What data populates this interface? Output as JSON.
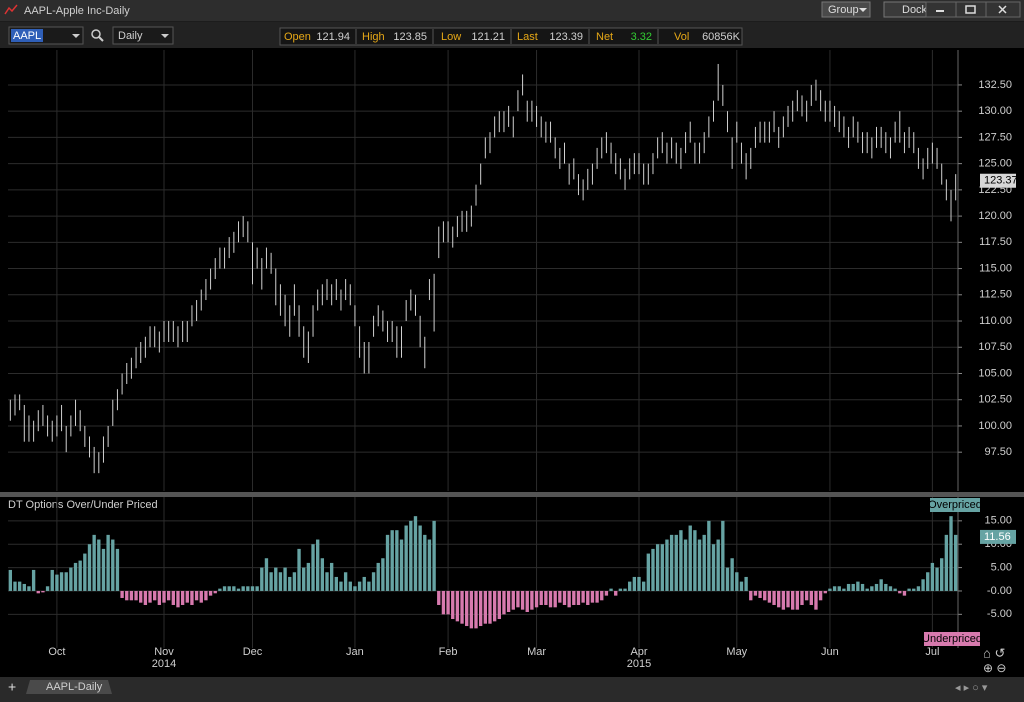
{
  "window": {
    "title": "AAPL-Apple Inc-Daily",
    "buttons": [
      "Group",
      "Dock"
    ]
  },
  "toolbar": {
    "symbol": "AAPL",
    "period": "Daily",
    "quotes": [
      {
        "label": "Open",
        "value": 121.94
      },
      {
        "label": "High",
        "value": 123.85
      },
      {
        "label": "Low",
        "value": 121.21
      },
      {
        "label": "Last",
        "value": 123.39
      },
      {
        "label": "Net",
        "value": 3.32
      },
      {
        "label": "Vol",
        "value": "60856K"
      }
    ]
  },
  "tab": "AAPL-Daily",
  "chart_data": [
    {
      "type": "range-bar",
      "color": "#d0d0d0",
      "grid": true,
      "last_value": 123.37,
      "ylim": [
        93.8,
        135.83
      ],
      "yticks": [
        {
          "value": 97.5,
          "label": "97.50"
        },
        {
          "value": 100,
          "label": "100.00"
        },
        {
          "value": 102.5,
          "label": "102.50"
        },
        {
          "value": 105,
          "label": "105.00"
        },
        {
          "value": 107.5,
          "label": "107.50"
        },
        {
          "value": 110,
          "label": "110.00"
        },
        {
          "value": 112.5,
          "label": "112.50"
        },
        {
          "value": 115,
          "label": "115.00"
        },
        {
          "value": 117.5,
          "label": "117.50"
        },
        {
          "value": 120,
          "label": "120.00"
        },
        {
          "value": 122.5,
          "label": "122.50"
        },
        {
          "value": 125,
          "label": "125.00"
        },
        {
          "value": 127.5,
          "label": "127.50"
        },
        {
          "value": 130,
          "label": "130.00"
        },
        {
          "value": 132.5,
          "label": "132.50"
        }
      ],
      "high": [
        102.5,
        103,
        103,
        102,
        101,
        100.5,
        101.5,
        102,
        101,
        100.5,
        101,
        102,
        100,
        101,
        102.5,
        101.5,
        100,
        99,
        98,
        97.5,
        99,
        100,
        102.5,
        103.5,
        105,
        106,
        106.5,
        107.5,
        108,
        108.5,
        109.5,
        109.5,
        109,
        110,
        110,
        110,
        109.5,
        110,
        110,
        111.5,
        112,
        113,
        114,
        115,
        116,
        117,
        117,
        118,
        118.5,
        119.5,
        120,
        119.5,
        117.5,
        117,
        116,
        117,
        116.5,
        115,
        113.5,
        112.5,
        111.5,
        113.5,
        111.5,
        109.5,
        109,
        111.5,
        113,
        113.5,
        114,
        113.5,
        114,
        113,
        114,
        113.5,
        111.5,
        109.5,
        108,
        108,
        110.5,
        111.5,
        111,
        110,
        110,
        109.5,
        109.5,
        112,
        113,
        112.5,
        110.5,
        108.5,
        114,
        114.5,
        119,
        119.5,
        119.5,
        119,
        120,
        120.5,
        120.5,
        121,
        123,
        125,
        127.5,
        128,
        129.5,
        130,
        130,
        130.5,
        129.5,
        132,
        133.5,
        131,
        131,
        130.5,
        129.5,
        129,
        129,
        127.5,
        126.5,
        127,
        125,
        125.5,
        124,
        123.5,
        124.5,
        125,
        126.5,
        127.5,
        128,
        127,
        126,
        125.5,
        124.5,
        125.5,
        126,
        126,
        125,
        125,
        126,
        127.5,
        128,
        127,
        127.5,
        127,
        126.5,
        128,
        129,
        127,
        127,
        128,
        129.5,
        131,
        134.5,
        132.5,
        130,
        127.5,
        129,
        127,
        126,
        126.5,
        128.5,
        129,
        129,
        129,
        130,
        128.5,
        129.5,
        130.5,
        131,
        132,
        131.5,
        131,
        132.5,
        133,
        132,
        131,
        131,
        130.5,
        130,
        129.5,
        128.5,
        129.5,
        129,
        128,
        128,
        127.5,
        128.5,
        128.5,
        128,
        127.5,
        129,
        130,
        128,
        128.5,
        128,
        126.5,
        125.5,
        126.5,
        127,
        126.5,
        125,
        123.5,
        122.5,
        124
      ],
      "low": [
        100.5,
        101,
        101.5,
        98.5,
        98.5,
        98.5,
        99.5,
        100,
        99,
        98.5,
        99,
        99.5,
        97.5,
        99,
        100,
        99.5,
        98,
        97,
        95.5,
        95.5,
        96.5,
        98,
        100,
        101.5,
        103,
        104,
        104.5,
        105.5,
        106,
        106.5,
        107.5,
        107.5,
        107,
        108,
        108,
        108,
        107.5,
        108,
        108,
        109.5,
        110,
        111,
        112,
        113,
        114,
        115,
        115,
        116,
        116.5,
        117.5,
        118,
        117.5,
        113.5,
        115,
        113,
        115,
        114.5,
        111.5,
        110.5,
        109.5,
        108.5,
        110.5,
        108.5,
        106.5,
        106,
        108.5,
        111,
        111.5,
        112,
        111.5,
        112,
        111,
        112,
        111.5,
        109.5,
        106.5,
        105,
        105,
        108.5,
        109.5,
        109,
        108,
        108,
        106.5,
        106.5,
        110,
        111,
        110.5,
        107.5,
        105.5,
        112,
        109,
        116,
        117.5,
        117.5,
        117,
        118,
        118.5,
        118.5,
        119,
        121,
        123,
        125.5,
        126,
        127.5,
        128,
        128,
        128.5,
        127.5,
        130,
        131.5,
        129,
        129,
        128.5,
        127.5,
        127,
        127,
        125.5,
        124.5,
        125,
        123,
        123.5,
        122,
        121.5,
        122.5,
        123,
        124.5,
        125.5,
        126,
        125,
        124,
        123.5,
        122.5,
        123.5,
        124,
        124,
        123,
        123,
        124,
        125.5,
        126,
        125,
        125.5,
        125,
        124.5,
        126,
        127,
        125,
        125,
        126,
        127.5,
        129,
        131,
        130.5,
        128,
        124.5,
        127,
        125,
        123.5,
        124.5,
        126.5,
        127,
        127,
        127,
        128,
        126.5,
        127.5,
        128.5,
        129,
        130,
        129.5,
        129,
        130.5,
        131,
        130,
        129,
        129,
        128.5,
        128,
        127.5,
        126.5,
        127.5,
        127,
        126,
        126,
        125.5,
        126.5,
        126.5,
        126,
        125.5,
        127,
        127,
        126,
        126.5,
        126,
        124.5,
        123.5,
        124.5,
        125,
        124.5,
        123,
        121.5,
        119.5,
        121.5
      ]
    },
    {
      "type": "bar",
      "title": "DT Options Over/Under Priced",
      "color": "#66a3a3",
      "negative_color": "#d77aae",
      "grid": true,
      "last_value": 11.56,
      "annotations": [
        "Overpriced",
        "Underpriced"
      ],
      "years": [
        "2014",
        "2015"
      ],
      "ylim": [
        -12.2,
        20.1
      ],
      "yticks": [
        {
          "value": 15,
          "label": "15.00"
        },
        {
          "value": 10,
          "label": "10.00"
        },
        {
          "value": 5,
          "label": "5.00"
        },
        {
          "value": 0,
          "label": "-0.00"
        },
        {
          "value": -5,
          "label": "-5.00"
        }
      ],
      "categories": [
        null,
        null,
        null,
        null,
        null,
        null,
        null,
        null,
        null,
        null,
        "Oct",
        null,
        null,
        null,
        null,
        null,
        null,
        null,
        null,
        null,
        null,
        null,
        null,
        null,
        null,
        null,
        null,
        null,
        null,
        null,
        null,
        null,
        null,
        "Nov",
        null,
        null,
        null,
        null,
        null,
        null,
        null,
        null,
        null,
        null,
        null,
        null,
        null,
        null,
        null,
        null,
        null,
        null,
        "Dec",
        null,
        null,
        null,
        null,
        null,
        null,
        null,
        null,
        null,
        null,
        null,
        null,
        null,
        null,
        null,
        null,
        null,
        null,
        null,
        null,
        null,
        "Jan",
        null,
        null,
        null,
        null,
        null,
        null,
        null,
        null,
        null,
        null,
        null,
        null,
        null,
        null,
        null,
        null,
        null,
        null,
        null,
        "Feb",
        null,
        null,
        null,
        null,
        null,
        null,
        null,
        null,
        null,
        null,
        null,
        null,
        null,
        null,
        null,
        null,
        null,
        null,
        "Mar",
        null,
        null,
        null,
        null,
        null,
        null,
        null,
        null,
        null,
        null,
        null,
        null,
        null,
        null,
        null,
        null,
        null,
        null,
        null,
        null,
        null,
        "Apr",
        null,
        null,
        null,
        null,
        null,
        null,
        null,
        null,
        null,
        null,
        null,
        null,
        null,
        null,
        null,
        null,
        null,
        null,
        null,
        null,
        "May",
        null,
        null,
        null,
        null,
        null,
        null,
        null,
        null,
        null,
        null,
        null,
        null,
        null,
        null,
        null,
        null,
        null,
        null,
        null,
        "Jun",
        null,
        null,
        null,
        null,
        null,
        null,
        null,
        null,
        null,
        null,
        null,
        null,
        null,
        null,
        null,
        null,
        null,
        null,
        null,
        null,
        null,
        "Jul",
        null,
        null,
        null,
        null,
        null
      ],
      "values": [
        4.5,
        2,
        2,
        1.5,
        1,
        4.5,
        -0.5,
        -0.3,
        1,
        4.5,
        3.5,
        4,
        4,
        5,
        6,
        6.5,
        8,
        10,
        12,
        11,
        9,
        12,
        11,
        9,
        -1.5,
        -2,
        -2,
        -2,
        -2.5,
        -3,
        -2.5,
        -2,
        -3,
        -2.5,
        -2,
        -3,
        -3.5,
        -3,
        -2.5,
        -3,
        -2,
        -2.5,
        -2,
        -1,
        -0.5,
        0.5,
        1,
        1,
        1,
        0.5,
        1,
        1,
        1,
        1,
        5,
        7,
        4,
        5,
        4,
        5,
        3,
        4,
        9,
        5,
        6,
        10,
        11,
        7,
        4,
        6,
        3,
        2,
        4,
        2,
        1,
        2,
        3,
        2,
        4,
        6,
        7,
        12,
        13,
        13,
        11,
        14,
        15,
        16,
        14,
        12,
        11,
        15,
        -3,
        -5,
        -5,
        -6,
        -6.5,
        -7,
        -7.5,
        -8,
        -8,
        -7.5,
        -7,
        -7,
        -6.5,
        -6,
        -5,
        -4.5,
        -4,
        -3.5,
        -4,
        -4.5,
        -4,
        -3.5,
        -3,
        -3,
        -3.5,
        -3.5,
        -2.5,
        -3,
        -3.5,
        -3,
        -3,
        -2.5,
        -3,
        -2.5,
        -2.5,
        -2,
        -1,
        0.5,
        -1,
        0.5,
        0.5,
        2,
        3,
        3,
        2,
        8,
        9,
        10,
        10,
        11,
        12,
        12,
        13,
        11,
        14,
        13,
        11,
        12,
        15,
        10,
        11,
        15,
        5,
        7,
        4,
        2,
        3,
        -2,
        -1,
        -1.5,
        -2,
        -2.5,
        -3,
        -3.5,
        -4,
        -3.5,
        -4,
        -4,
        -3,
        -2,
        -3,
        -4,
        -2,
        -0.5,
        0.5,
        1,
        1,
        0.5,
        1.5,
        1.5,
        2,
        1.5,
        0.5,
        1,
        1.5,
        2.5,
        1.5,
        1,
        0.5,
        -0.5,
        -1,
        0.5,
        0.5,
        1,
        2.5,
        4,
        6,
        5,
        7,
        12,
        16,
        12
      ]
    }
  ]
}
